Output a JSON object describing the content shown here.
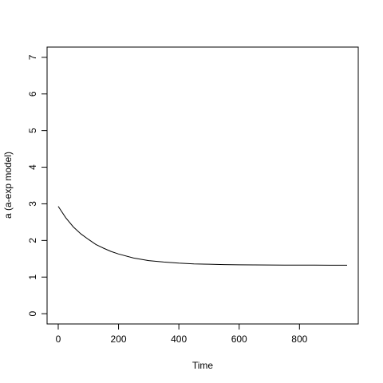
{
  "chart_data": {
    "type": "line",
    "title": "",
    "xlabel": "Time",
    "ylabel": "a (a-exp model)",
    "xlim": [
      -37,
      995
    ],
    "ylim": [
      -0.28,
      7.28
    ],
    "x_ticks": [
      0,
      200,
      400,
      600,
      800
    ],
    "x_tick_labels": [
      "0",
      "200",
      "400",
      "600",
      "800"
    ],
    "y_ticks": [
      0,
      1,
      2,
      3,
      4,
      5,
      6,
      7
    ],
    "y_tick_labels": [
      "0",
      "1",
      "2",
      "3",
      "4",
      "5",
      "6",
      "7"
    ],
    "grid": false,
    "legend": "none",
    "series": [
      {
        "color": "#000000",
        "x": [
          0,
          25,
          50,
          75,
          100,
          125,
          150,
          175,
          200,
          250,
          300,
          350,
          400,
          450,
          500,
          550,
          600,
          650,
          700,
          750,
          800,
          850,
          900,
          958
        ],
        "y": [
          2.93,
          2.62,
          2.37,
          2.18,
          2.03,
          1.89,
          1.79,
          1.7,
          1.63,
          1.52,
          1.45,
          1.41,
          1.38,
          1.36,
          1.35,
          1.34,
          1.335,
          1.332,
          1.33,
          1.328,
          1.327,
          1.326,
          1.325,
          1.325
        ]
      }
    ]
  }
}
